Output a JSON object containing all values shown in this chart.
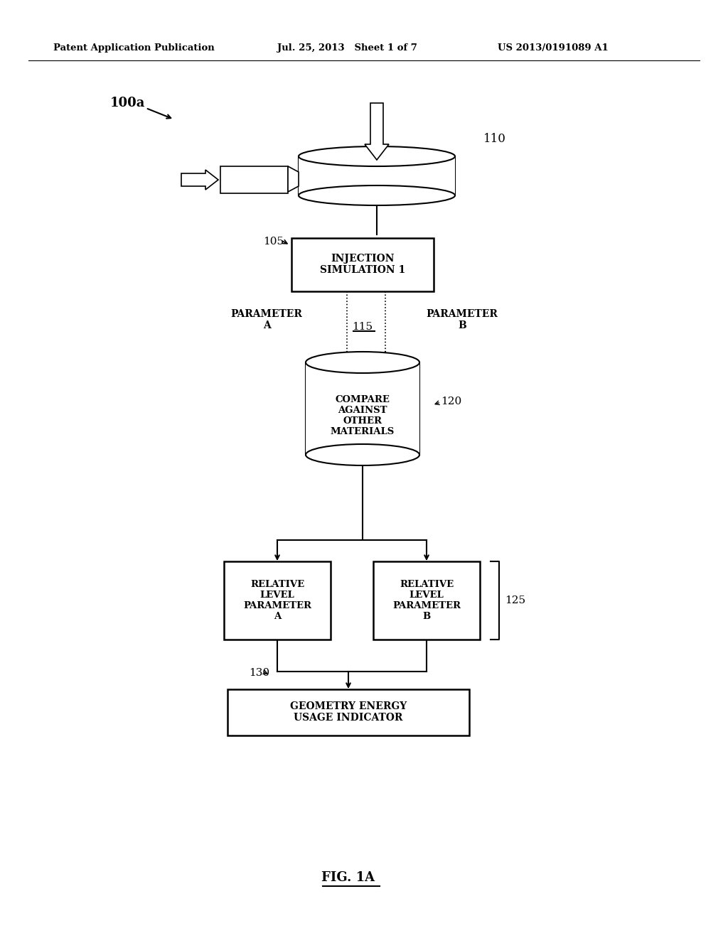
{
  "bg_color": "#ffffff",
  "header_left": "Patent Application Publication",
  "header_mid": "Jul. 25, 2013   Sheet 1 of 7",
  "header_right": "US 2013/0191089 A1",
  "label_100a": "100a",
  "label_110": "110",
  "label_105": "105",
  "label_115": "115",
  "label_120": "120",
  "label_125": "125",
  "label_130": "130",
  "box_injection_text": "INJECTION\nSIMULATION 1",
  "box_compare_text": "COMPARE\nAGAINST\nOTHER\nMATERIALS",
  "box_rel_a_text": "RELATIVE\nLEVEL\nPARAMETER\nA",
  "box_rel_b_text": "RELATIVE\nLEVEL\nPARAMETER\nB",
  "box_geom_text": "GEOMETRY ENERGY\nUSAGE INDICATOR",
  "param_a_text": "PARAMETER\nA",
  "param_b_text": "PARAMETER\nB",
  "fig_label": "FIG. 1A"
}
